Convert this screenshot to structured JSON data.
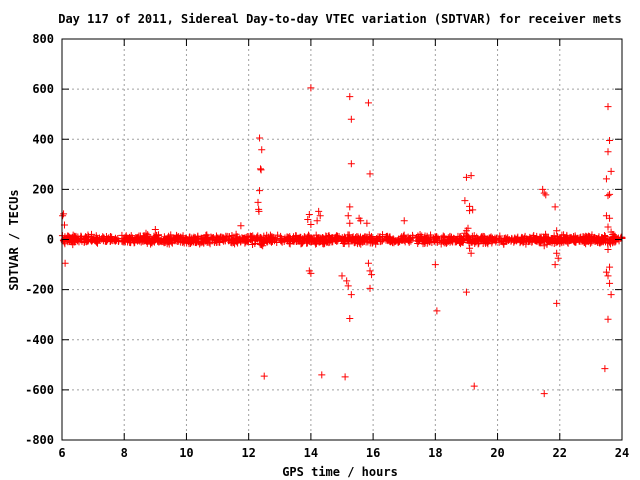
{
  "chart_data": {
    "type": "scatter",
    "title": "Day 117 of 2011, Sidereal Day-to-day VTEC variation (SDTVAR) for receiver mets",
    "xlabel": "GPS time / hours",
    "ylabel": "SDTVAR / TECUs",
    "xlim": [
      6,
      24
    ],
    "ylim": [
      -800,
      800
    ],
    "xticks": [
      6,
      8,
      10,
      12,
      14,
      16,
      18,
      20,
      22,
      24
    ],
    "yticks": [
      800,
      600,
      400,
      200,
      0,
      -200,
      -400,
      -600,
      -800
    ],
    "grid": true,
    "marker": "+",
    "color": "#ff0000",
    "band": {
      "x_start": 6.0,
      "x_end": 24.0,
      "y_min": -15,
      "y_max": 15
    },
    "series": [
      {
        "outliers": [
          [
            6.02,
            95
          ],
          [
            6.05,
            102
          ],
          [
            6.08,
            58
          ],
          [
            6.1,
            -95
          ],
          [
            8.7,
            25
          ],
          [
            9.0,
            40
          ],
          [
            11.75,
            55
          ],
          [
            12.35,
            405
          ],
          [
            12.38,
            282
          ],
          [
            12.4,
            278
          ],
          [
            12.42,
            358
          ],
          [
            12.35,
            195
          ],
          [
            12.3,
            148
          ],
          [
            12.32,
            120
          ],
          [
            12.33,
            112
          ],
          [
            12.45,
            -25
          ],
          [
            12.5,
            -545
          ],
          [
            14.0,
            605
          ],
          [
            13.95,
            100
          ],
          [
            13.9,
            80
          ],
          [
            14.0,
            60
          ],
          [
            14.25,
            112
          ],
          [
            14.3,
            95
          ],
          [
            14.2,
            75
          ],
          [
            13.95,
            -125
          ],
          [
            14.0,
            -135
          ],
          [
            14.35,
            -540
          ],
          [
            15.25,
            570
          ],
          [
            15.3,
            480
          ],
          [
            15.3,
            302
          ],
          [
            15.25,
            130
          ],
          [
            15.2,
            95
          ],
          [
            15.25,
            65
          ],
          [
            15.0,
            -145
          ],
          [
            15.15,
            -165
          ],
          [
            15.2,
            -185
          ],
          [
            15.3,
            -220
          ],
          [
            15.25,
            -315
          ],
          [
            15.1,
            -548
          ],
          [
            15.55,
            85
          ],
          [
            15.6,
            75
          ],
          [
            15.85,
            545
          ],
          [
            15.9,
            262
          ],
          [
            15.8,
            65
          ],
          [
            15.85,
            -95
          ],
          [
            15.9,
            -125
          ],
          [
            15.95,
            -140
          ],
          [
            15.9,
            -195
          ],
          [
            17.0,
            75
          ],
          [
            18.0,
            -100
          ],
          [
            18.05,
            -285
          ],
          [
            18.95,
            155
          ],
          [
            19.0,
            248
          ],
          [
            19.15,
            255
          ],
          [
            19.1,
            132
          ],
          [
            19.1,
            115
          ],
          [
            19.2,
            118
          ],
          [
            19.05,
            45
          ],
          [
            19.0,
            35
          ],
          [
            18.95,
            25
          ],
          [
            19.1,
            -35
          ],
          [
            19.15,
            -55
          ],
          [
            19.0,
            -210
          ],
          [
            19.25,
            -585
          ],
          [
            21.45,
            200
          ],
          [
            21.5,
            185
          ],
          [
            21.55,
            178
          ],
          [
            21.5,
            -25
          ],
          [
            21.5,
            -615
          ],
          [
            21.85,
            130
          ],
          [
            21.9,
            35
          ],
          [
            21.9,
            -55
          ],
          [
            21.95,
            -75
          ],
          [
            21.85,
            -100
          ],
          [
            21.9,
            -255
          ],
          [
            23.55,
            530
          ],
          [
            23.6,
            395
          ],
          [
            23.55,
            350
          ],
          [
            23.65,
            272
          ],
          [
            23.5,
            242
          ],
          [
            23.55,
            175
          ],
          [
            23.6,
            180
          ],
          [
            23.5,
            95
          ],
          [
            23.6,
            85
          ],
          [
            23.55,
            50
          ],
          [
            23.65,
            30
          ],
          [
            23.7,
            20
          ],
          [
            23.55,
            -40
          ],
          [
            23.6,
            -110
          ],
          [
            23.5,
            -130
          ],
          [
            23.55,
            -145
          ],
          [
            23.6,
            -175
          ],
          [
            23.65,
            -220
          ],
          [
            23.55,
            -318
          ],
          [
            23.45,
            -515
          ]
        ]
      }
    ]
  }
}
